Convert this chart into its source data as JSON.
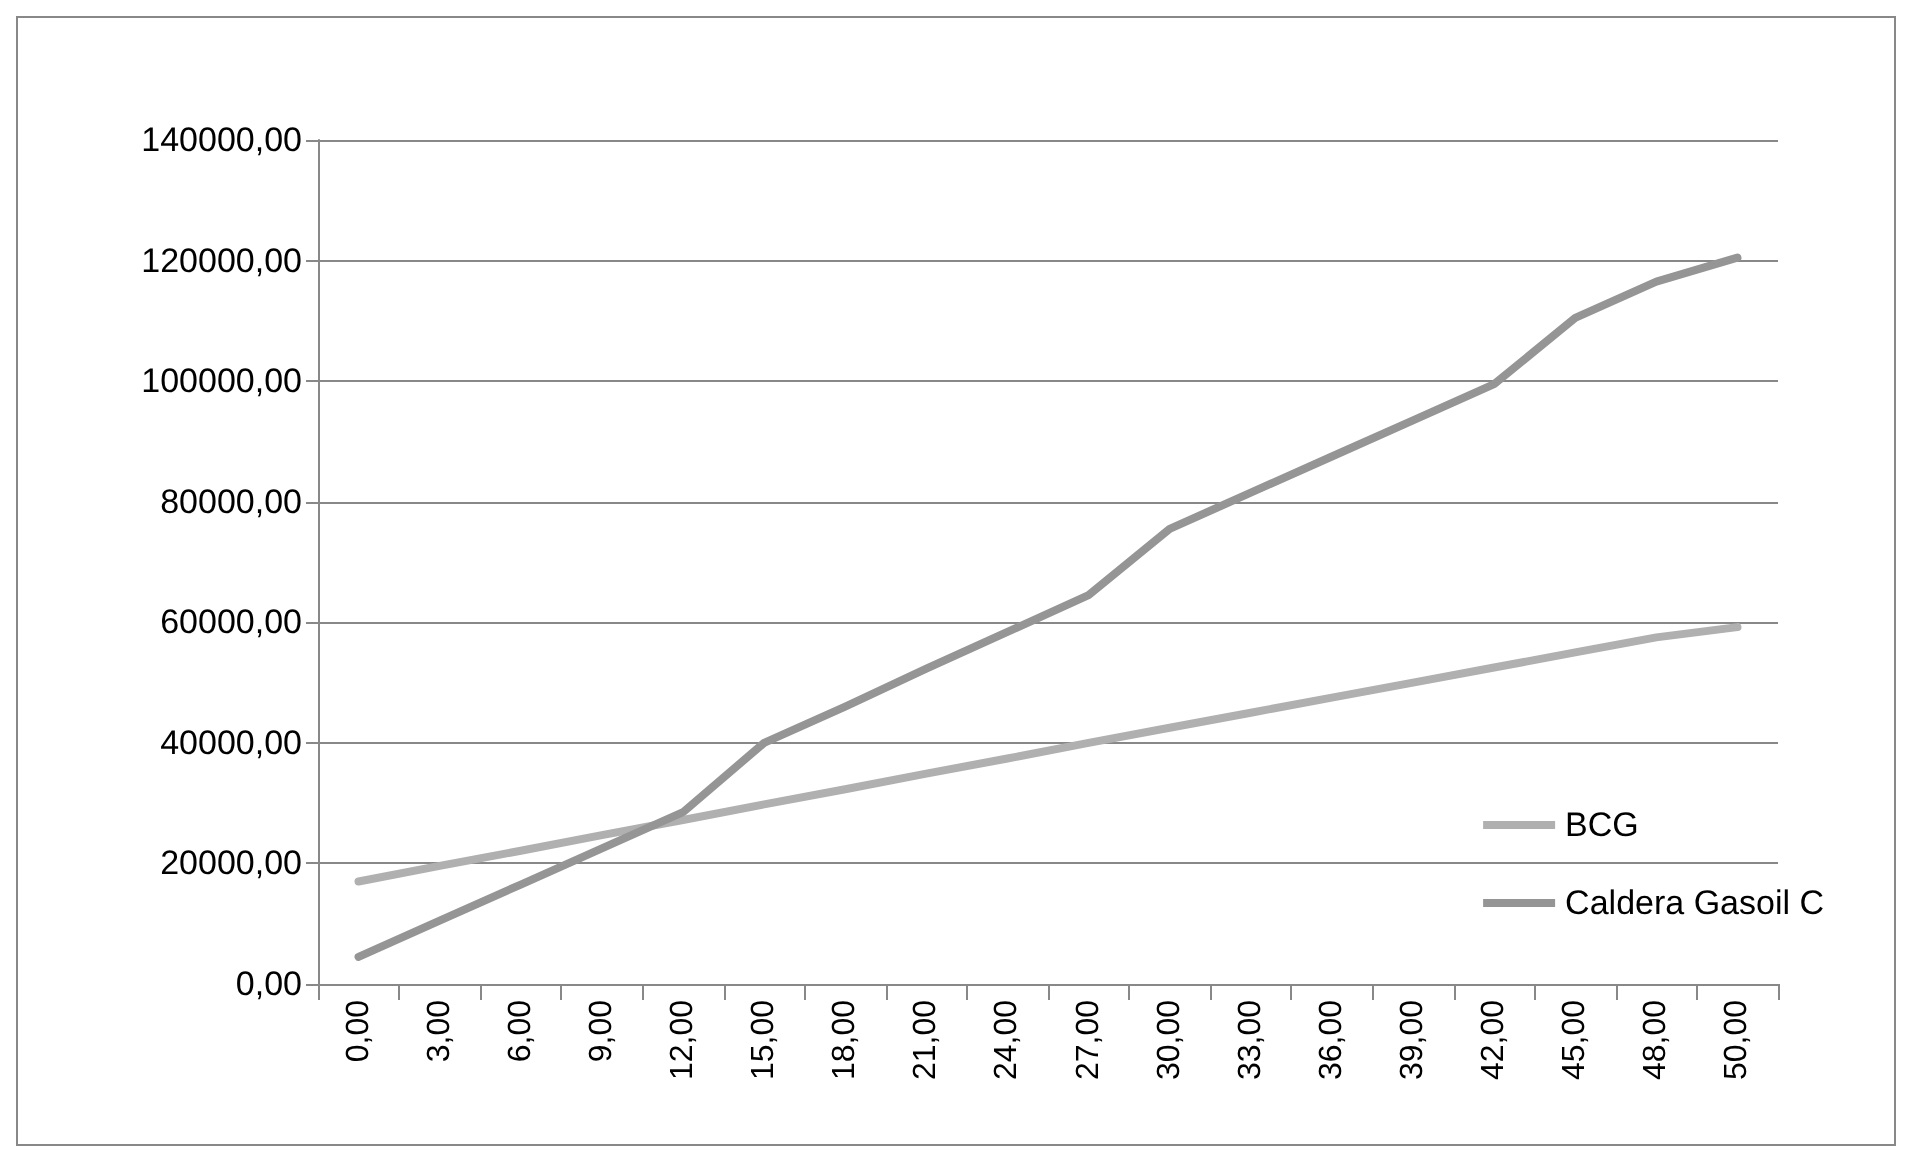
{
  "chart_data": {
    "type": "line",
    "categories": [
      "0,00",
      "3,00",
      "6,00",
      "9,00",
      "12,00",
      "15,00",
      "18,00",
      "21,00",
      "24,00",
      "27,00",
      "30,00",
      "33,00",
      "36,00",
      "39,00",
      "42,00",
      "45,00",
      "48,00",
      "50,00"
    ],
    "series": [
      {
        "name": "BCG",
        "color": "#b0b0b0",
        "values": [
          17000,
          19600,
          22100,
          24700,
          27200,
          29800,
          32300,
          34900,
          37400,
          40000,
          42500,
          45000,
          47500,
          50000,
          52500,
          55000,
          57500,
          59200
        ]
      },
      {
        "name": "Caldera Gasoil C",
        "color": "#959595",
        "values": [
          4500,
          10500,
          16500,
          22500,
          28500,
          40000,
          46000,
          52300,
          58400,
          64500,
          75500,
          81500,
          87500,
          93500,
          99500,
          110500,
          116500,
          120500
        ]
      }
    ],
    "ylim": [
      0,
      140000
    ],
    "yticks": [
      {
        "value": 0,
        "label": "0,00"
      },
      {
        "value": 20000,
        "label": "20000,00"
      },
      {
        "value": 40000,
        "label": "40000,00"
      },
      {
        "value": 60000,
        "label": "60000,00"
      },
      {
        "value": 80000,
        "label": "80000,00"
      },
      {
        "value": 100000,
        "label": "100000,00"
      },
      {
        "value": 120000,
        "label": "120000,00"
      },
      {
        "value": 140000,
        "label": "140000,00"
      }
    ],
    "grid": "y",
    "legend": "right",
    "marker": "none",
    "line_style": "solid"
  }
}
